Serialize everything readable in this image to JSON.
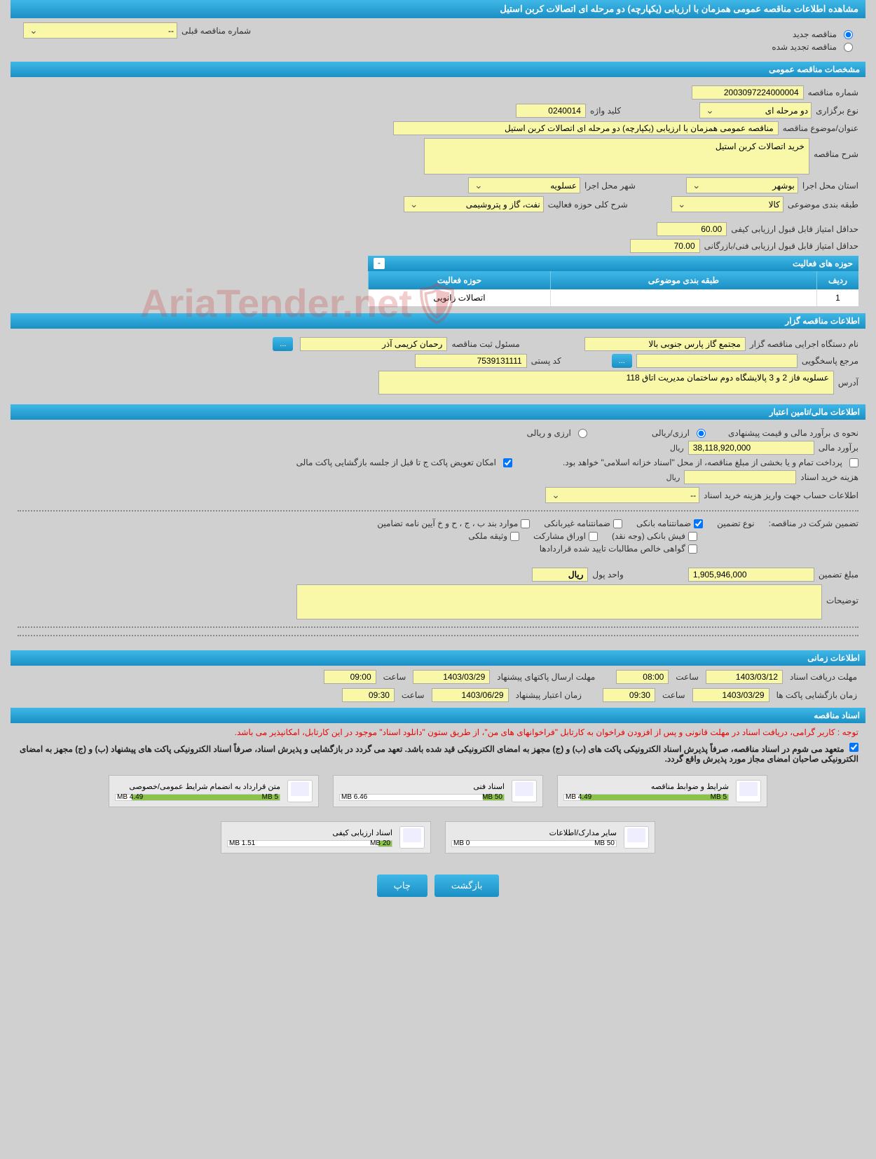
{
  "page_title": "مشاهده اطلاعات مناقصه عمومی همزمان با ارزیابی (یکپارچه) دو مرحله ای اتصالات کربن استیل",
  "colors": {
    "header_bg_top": "#3fb8e8",
    "header_bg_bottom": "#1a8fc4",
    "field_bg": "#f8f8a8",
    "page_bg": "#d0d0d0",
    "notice_red": "#e00000",
    "progress_green": "#8bc34a"
  },
  "top_options": {
    "new_tender": "مناقصه جدید",
    "renewed_tender": "مناقصه تجدید شده",
    "prev_label": "شماره مناقصه قبلی",
    "prev_value": "--"
  },
  "sections": {
    "general": "مشخصات مناقصه عمومی",
    "organizer": "اطلاعات مناقصه گزار",
    "financial": "اطلاعات مالی/تامین اعتبار",
    "timing": "اطلاعات زمانی",
    "documents": "اسناد مناقصه"
  },
  "general": {
    "number_label": "شماره مناقصه",
    "number": "2003097224000004",
    "type_label": "نوع برگزاری",
    "type": "دو مرحله ای",
    "keyword_label": "کلید واژه",
    "keyword": "0240014",
    "title_label": "عنوان/موضوع مناقصه",
    "title": "مناقصه عمومی همزمان با ارزیابی (یکپارچه) دو مرحله ای اتصالات کربن استیل",
    "desc_label": "شرح مناقصه",
    "desc": "خرید اتصالات کربن استیل",
    "province_label": "استان محل اجرا",
    "province": "بوشهر",
    "city_label": "شهر محل اجرا",
    "city": "عسلویه",
    "subject_cat_label": "طبقه بندی موضوعی",
    "subject_cat": "کالا",
    "activity_desc_label": "شرح کلی حوزه فعالیت",
    "activity_desc": "نفت، گاز و پتروشیمی",
    "min_quality_label": "حداقل امتیاز قابل قبول ارزیابی کیفی",
    "min_quality": "60.00",
    "min_tech_label": "حداقل امتیاز قابل قبول ارزیابی فنی/بازرگانی",
    "min_tech": "70.00",
    "activity_header": "حوزه های فعالیت",
    "th_row": "ردیف",
    "th_cat": "طبقه بندی موضوعی",
    "th_activity": "حوزه فعالیت",
    "tr1_row": "1",
    "tr1_cat": "",
    "tr1_activity": "اتصالات زانویی"
  },
  "organizer": {
    "exec_label": "نام دستگاه اجرایی مناقصه گزار",
    "exec": "مجتمع گاز پارس جنوبی  بالا",
    "resp_label": "مسئول ثبت مناقصه",
    "resp": "رحمان کریمی آذر",
    "ref_label": "مرجع پاسخگویی",
    "ref": "",
    "postal_label": "کد پستی",
    "postal": "7539131111",
    "more": "...",
    "addr_label": "آدرس",
    "addr": "عسلویه فاز 2 و 3 پالایشگاه دوم ساختمان مدیریت اتاق 118"
  },
  "financial": {
    "method_label": "نحوه ی برآورد مالی و قیمت پیشنهادی",
    "opt_rial": "ارزی/ریالی",
    "opt_both": "ارزی و ریالی",
    "amount_label": "برآورد مالی",
    "amount": "38,118,920,000",
    "unit": "ریال",
    "payment_note": "پرداخت تمام و یا بخشی از مبلغ مناقصه، از محل \"اسناد خزانه اسلامی\" خواهد بود.",
    "change_opt": "امکان تعویض پاکت ج تا قبل از جلسه بازگشایی پاکت مالی",
    "purchase_label": "هزینه خرید اسناد",
    "purchase_value": "",
    "account_label": "اطلاعات حساب جهت واریز هزینه خرید اسناد",
    "account_value": "--",
    "guarantee_label": "تضمین شرکت در مناقصه:",
    "guarantee_type": "نوع تضمین",
    "g_bank": "ضمانتنامه بانکی",
    "g_nonbank": "ضمانتنامه غیربانکی",
    "g_other": "موارد بند ب ، ج ، ح و خ آیین نامه تضامین",
    "g_cash": "فیش بانکی (وجه نقد)",
    "g_bond": "اوراق مشارکت",
    "g_property": "وثیقه ملکی",
    "g_approved": "گواهی خالص مطالبات تایید شده قراردادها",
    "guarantee_amount_label": "مبلغ تضمین",
    "guarantee_amount": "1,905,946,000",
    "currency_label": "واحد پول",
    "currency": "ریال",
    "notes_label": "توضیحات",
    "notes": ""
  },
  "timing": {
    "receive_label": "مهلت دریافت اسناد",
    "receive_date": "1403/03/12",
    "receive_time_label": "ساعت",
    "receive_time": "08:00",
    "send_label": "مهلت ارسال پاکتهای پیشنهاد",
    "send_date": "1403/03/29",
    "send_time_label": "ساعت",
    "send_time": "09:00",
    "open_label": "زمان بازگشایی پاکت ها",
    "open_date": "1403/03/29",
    "open_time_label": "ساعت",
    "open_time": "09:30",
    "valid_label": "زمان اعتبار پیشنهاد",
    "valid_date": "1403/06/29",
    "valid_time_label": "ساعت",
    "valid_time": "09:30"
  },
  "documents": {
    "notice1": "توجه : کاربر گرامی، دریافت اسناد در مهلت قانونی و پس از افزودن فراخوان به کارتابل \"فراخوانهای های من\"، از طریق ستون \"دانلود اسناد\" موجود در این کارتابل، امکانپذیر می باشد.",
    "notice2": "متعهد می شوم در اسناد مناقصه، صرفاً پذیرش اسناد الکترونیکی پاکت های (ب) و (ج) مجهز به امضای الکترونیکی قید شده باشد. تعهد می گردد در بازگشایی و پذیرش اسناد، صرفاً اسناد الکترونیکی پاکت های پیشنهاد (ب) و (ج) مجهز به امضای الکترونیکی صاحبان امضای مجاز مورد پذیرش واقع گردد.",
    "items": [
      {
        "title": "شرایط و ضوابط مناقصه",
        "used": "4.49 MB",
        "total": "5 MB",
        "fill": 90
      },
      {
        "title": "اسناد فنی",
        "used": "6.46 MB",
        "total": "50 MB",
        "fill": 13
      },
      {
        "title": "متن قرارداد به انضمام شرایط عمومی/خصوصی",
        "used": "4.49 MB",
        "total": "5 MB",
        "fill": 90
      },
      {
        "title": "سایر مدارک/اطلاعات",
        "used": "0 MB",
        "total": "50 MB",
        "fill": 0
      },
      {
        "title": "اسناد ارزیابی کیفی",
        "used": "1.51 MB",
        "total": "20 MB",
        "fill": 8
      }
    ]
  },
  "buttons": {
    "back": "بازگشت",
    "print": "چاپ"
  },
  "watermark": "AriaTender.net"
}
